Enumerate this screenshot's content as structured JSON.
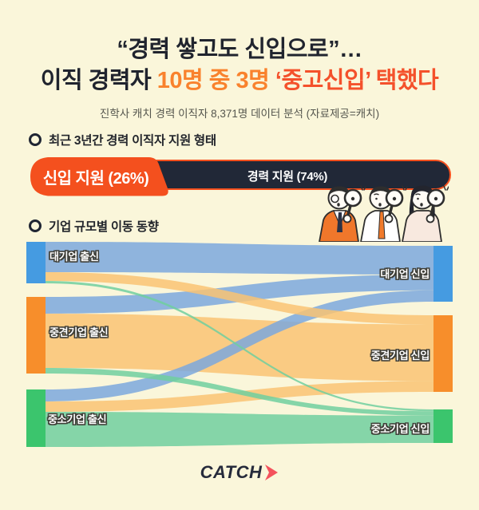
{
  "palette": {
    "background": "#FAF6DA",
    "dark_navy": "#212837",
    "accent_red_orange": "#F4501E",
    "title_orange": "#F9822D",
    "title_red": "#F4512B",
    "node_blue": "#459BE1",
    "node_orange": "#F78E2B",
    "node_green": "#3BC56D",
    "flow_blue": "#7BA8DD",
    "flow_orange": "#F9C373",
    "flow_green": "#70CF9F"
  },
  "header": {
    "title_line1": "“경력 쌓고도 신입으로”…",
    "title_line2_prefix": "이직 경력자 ",
    "title_line2_highlight1": "10명 중 3명 ",
    "title_line2_highlight2": "‘중고신입’ 택했다",
    "subtitle": "진학사 캐치 경력 이직자 8,371명 데이터 분석 (자료제공=캐치)"
  },
  "sections": {
    "apply_type": {
      "heading": "최근 3년간 경력 이직자 지원 형태",
      "bar": {
        "new_label": "신입 지원 (26%)",
        "new_pct": 26,
        "exp_label": "경력 지원 (74%)",
        "exp_pct": 74
      }
    },
    "movement": {
      "heading": "기업 규모별 이동 동향"
    }
  },
  "chart_data": [
    {
      "type": "bar",
      "title": "최근 3년간 경력 이직자 지원 형태",
      "categories": [
        "신입 지원",
        "경력 지원"
      ],
      "values": [
        26,
        74
      ],
      "unit": "%",
      "layout": "horizontal-stacked"
    },
    {
      "type": "sankey",
      "title": "기업 규모별 이동 동향",
      "nodes": [
        {
          "id": "L1",
          "label": "대기업 출신",
          "side": "left",
          "color": "#459BE1"
        },
        {
          "id": "L2",
          "label": "중견기업 출신",
          "side": "left",
          "color": "#F78E2B"
        },
        {
          "id": "L3",
          "label": "중소기업 출신",
          "side": "left",
          "color": "#3BC56D"
        },
        {
          "id": "R1",
          "label": "대기업 신입",
          "side": "right",
          "color": "#459BE1"
        },
        {
          "id": "R2",
          "label": "중견기업 신입",
          "side": "right",
          "color": "#F78E2B"
        },
        {
          "id": "R3",
          "label": "중소기업 신입",
          "side": "right",
          "color": "#3BC56D"
        }
      ],
      "links": [
        {
          "source": "L1",
          "target": "R1",
          "value": 38
        },
        {
          "source": "L1",
          "target": "R2",
          "value": 11
        },
        {
          "source": "L1",
          "target": "R3",
          "value": 3
        },
        {
          "source": "L2",
          "target": "R1",
          "value": 21
        },
        {
          "source": "L2",
          "target": "R2",
          "value": 68
        },
        {
          "source": "L2",
          "target": "R3",
          "value": 7
        },
        {
          "source": "L3",
          "target": "R1",
          "value": 15
        },
        {
          "source": "L3",
          "target": "R2",
          "value": 13
        },
        {
          "source": "L3",
          "target": "R3",
          "value": 44
        }
      ],
      "flow_colors_by_target": {
        "R1": "#7BA8DD",
        "R2": "#F9C373",
        "R3": "#70CF9F"
      }
    }
  ],
  "footer": {
    "logo_text": "CATCH"
  }
}
